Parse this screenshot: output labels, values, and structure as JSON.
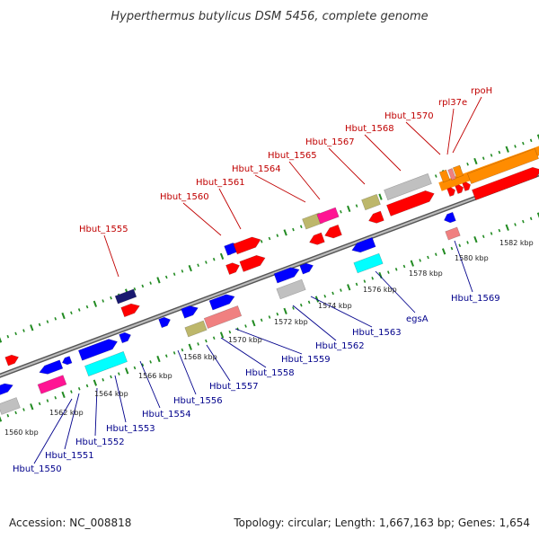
{
  "title": "Hyperthermus butylicus DSM 5456, complete genome",
  "accession": "Accession: NC_008818",
  "topology": "Topology: circular; Length: 1,667,163 bp; Genes: 1,654",
  "colors": {
    "red": "#ff0000",
    "blue": "#0000ff",
    "cyan": "#00ffff",
    "magenta": "#ff1493",
    "gray": "#c0c0c0",
    "pink": "#f08080",
    "olive": "#bdb76b",
    "orange": "#ff8c00",
    "navy": "#191970",
    "backbone": "#888888",
    "tick": "#228b22",
    "label_red": "#c00000",
    "label_blue": "#00008b"
  },
  "upper_labels": [
    "Hbut_1555",
    "Hbut_1560",
    "Hbut_1561",
    "Hbut_1564",
    "Hbut_1565",
    "Hbut_1567",
    "Hbut_1568",
    "Hbut_1570",
    "rpl37e",
    "rpoH"
  ],
  "lower_labels": [
    "Hbut_1550",
    "Hbut_1551",
    "Hbut_1552",
    "Hbut_1553",
    "Hbut_1554",
    "Hbut_1556",
    "Hbut_1557",
    "Hbut_1558",
    "Hbut_1559",
    "Hbut_1562",
    "Hbut_1563",
    "egsA",
    "Hbut_1569"
  ],
  "kbp_labels": [
    "1560 kbp",
    "1562 kbp",
    "1564 kbp",
    "1566 kbp",
    "1568 kbp",
    "1570 kbp",
    "1572 kbp",
    "1574 kbp",
    "1576 kbp",
    "1578 kbp",
    "1580 kbp",
    "1582 kbp"
  ]
}
